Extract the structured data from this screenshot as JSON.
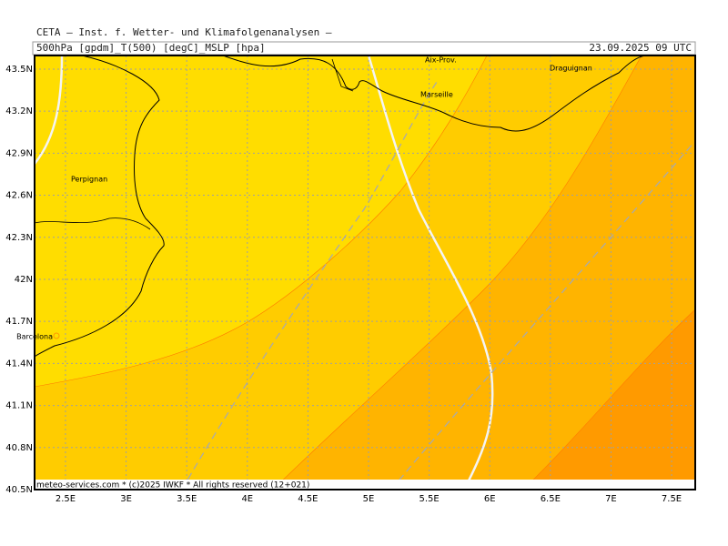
{
  "header": {
    "title": "CETA – Inst. f. Wetter- und Klimafolgenanalysen –",
    "fields": "500hPa [gpdm]_T(500) [degC]_MSLP [hpa]",
    "valid_time": "23.09.2025 09 UTC"
  },
  "map": {
    "xlim": [
      2.245,
      7.695
    ],
    "ylim": [
      40.5,
      43.597
    ],
    "xticks": [
      {
        "value": 2.5,
        "label": "2.5E"
      },
      {
        "value": 3,
        "label": "3E"
      },
      {
        "value": 3.5,
        "label": "3.5E"
      },
      {
        "value": 4,
        "label": "4E"
      },
      {
        "value": 4.5,
        "label": "4.5E"
      },
      {
        "value": 5,
        "label": "5E"
      },
      {
        "value": 5.5,
        "label": "5.5E"
      },
      {
        "value": 6,
        "label": "6E"
      },
      {
        "value": 6.5,
        "label": "6.5E"
      },
      {
        "value": 7,
        "label": "7E"
      },
      {
        "value": 7.5,
        "label": "7.5E"
      }
    ],
    "yticks": [
      {
        "value": 40.5,
        "label": "40.5N"
      },
      {
        "value": 40.8,
        "label": "40.8N"
      },
      {
        "value": 41.1,
        "label": "41.1N"
      },
      {
        "value": 41.4,
        "label": "41.4N"
      },
      {
        "value": 41.7,
        "label": "41.7N"
      },
      {
        "value": 42,
        "label": "42N"
      },
      {
        "value": 42.3,
        "label": "42.3N"
      },
      {
        "value": 42.6,
        "label": "42.6N"
      },
      {
        "value": 42.9,
        "label": "42.9N"
      },
      {
        "value": 43.2,
        "label": "43.2N"
      },
      {
        "value": 43.5,
        "label": "43.5N"
      }
    ],
    "cities": [
      "Perpignan",
      "Barcelona",
      "Marseille",
      "Aix-Prov.",
      "Draguignan"
    ],
    "footer": "meteo-services.com * (c)2025 IWKF * All rights reserved (12+021)"
  }
}
